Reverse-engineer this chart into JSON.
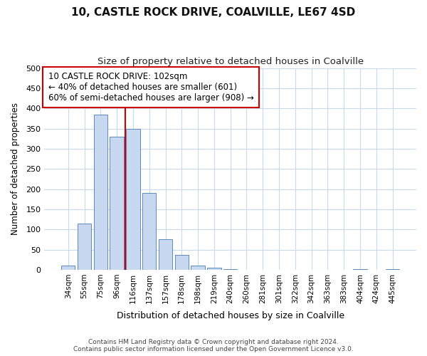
{
  "title1": "10, CASTLE ROCK DRIVE, COALVILLE, LE67 4SD",
  "title2": "Size of property relative to detached houses in Coalville",
  "xlabel": "Distribution of detached houses by size in Coalville",
  "ylabel": "Number of detached properties",
  "categories": [
    "34sqm",
    "55sqm",
    "75sqm",
    "96sqm",
    "116sqm",
    "137sqm",
    "157sqm",
    "178sqm",
    "198sqm",
    "219sqm",
    "240sqm",
    "260sqm",
    "281sqm",
    "301sqm",
    "322sqm",
    "342sqm",
    "363sqm",
    "383sqm",
    "404sqm",
    "424sqm",
    "445sqm"
  ],
  "values": [
    10,
    115,
    385,
    330,
    350,
    190,
    75,
    37,
    10,
    5,
    1,
    0,
    0,
    0,
    0,
    0,
    0,
    0,
    2,
    0,
    2
  ],
  "bar_color": "#c8d8f0",
  "bar_edgecolor": "#5a8abf",
  "vline_x": 3.5,
  "vline_color": "#cc0000",
  "annotation_text": "10 CASTLE ROCK DRIVE: 102sqm\n← 40% of detached houses are smaller (601)\n60% of semi-detached houses are larger (908) →",
  "annotation_box_color": "#ffffff",
  "annotation_box_edgecolor": "#cc0000",
  "ylim": [
    0,
    500
  ],
  "yticks": [
    0,
    50,
    100,
    150,
    200,
    250,
    300,
    350,
    400,
    450,
    500
  ],
  "footer1": "Contains HM Land Registry data © Crown copyright and database right 2024.",
  "footer2": "Contains public sector information licensed under the Open Government Licence v3.0.",
  "bg_color": "#ffffff",
  "plot_bg_color": "#ffffff",
  "grid_color": "#c8d8ee"
}
